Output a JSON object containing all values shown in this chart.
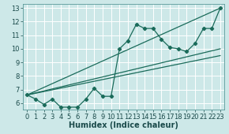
{
  "background_color": "#cde8e8",
  "grid_color": "#ffffff",
  "line_color": "#1a6b5a",
  "xlabel": "Humidex (Indice chaleur)",
  "xlim": [
    -0.5,
    23.5
  ],
  "ylim": [
    5.5,
    13.3
  ],
  "yticks": [
    6,
    7,
    8,
    9,
    10,
    11,
    12,
    13
  ],
  "xticks": [
    0,
    1,
    2,
    3,
    4,
    5,
    6,
    7,
    8,
    9,
    10,
    11,
    12,
    13,
    14,
    15,
    16,
    17,
    18,
    19,
    20,
    21,
    22,
    23
  ],
  "series1_x": [
    0,
    1,
    2,
    3,
    4,
    5,
    6,
    7,
    8,
    9,
    10,
    11,
    12,
    13,
    14,
    15,
    16,
    17,
    18,
    19,
    20,
    21,
    22,
    23
  ],
  "series1_y": [
    6.6,
    6.3,
    5.9,
    6.3,
    5.7,
    5.7,
    5.7,
    6.3,
    7.1,
    6.5,
    6.5,
    10.0,
    10.6,
    11.8,
    11.5,
    11.5,
    10.7,
    10.1,
    10.0,
    9.8,
    10.4,
    11.5,
    11.5,
    13.0
  ],
  "trendline1": {
    "x": [
      0,
      23
    ],
    "y": [
      6.6,
      13.0
    ]
  },
  "trendline2": {
    "x": [
      0,
      23
    ],
    "y": [
      6.6,
      10.0
    ]
  },
  "trendline3": {
    "x": [
      0,
      23
    ],
    "y": [
      6.6,
      9.5
    ]
  },
  "tick_fontsize": 6,
  "xlabel_fontsize": 7
}
